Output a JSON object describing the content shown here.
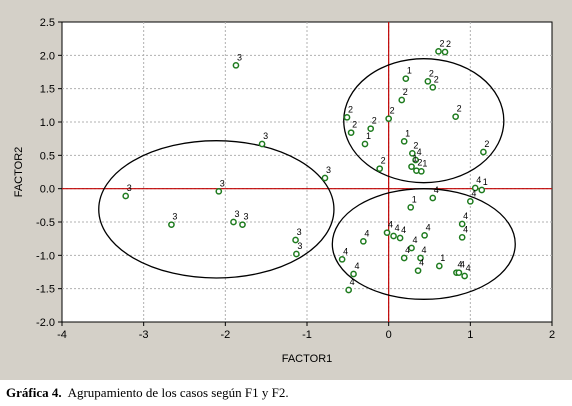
{
  "caption": {
    "label": "Gráfica 4.",
    "text": "Agrupamiento de los casos según F1 y F2."
  },
  "colors": {
    "background": "#d4d0c8",
    "plot_area": "#ffffff",
    "grid": "#b0b0b0",
    "axis_lines": "#c00000",
    "points": "#1e7b1e",
    "ellipses": "#000000"
  },
  "chart_data": {
    "type": "scatter",
    "xlabel": "FACTOR1",
    "ylabel": "FACTOR2",
    "xlim": [
      -4,
      2
    ],
    "ylim": [
      -2,
      2.5
    ],
    "xticks": [
      "-4",
      "-3",
      "-2",
      "-1",
      "0",
      "1",
      "2"
    ],
    "yticks": [
      "-2.0",
      "-1.5",
      "-1.0",
      "-0.5",
      "0.0",
      "0.5",
      "1.0",
      "1.5",
      "2.0",
      "2.5"
    ],
    "grid": true,
    "reference_lines": {
      "x": 0,
      "y": 0
    },
    "points": [
      {
        "x": -1.87,
        "y": 1.85,
        "label": "3"
      },
      {
        "x": -1.55,
        "y": 0.67,
        "label": "3"
      },
      {
        "x": -0.78,
        "y": 0.16,
        "label": "3"
      },
      {
        "x": -3.22,
        "y": -0.11,
        "label": "3"
      },
      {
        "x": -2.08,
        "y": -0.04,
        "label": "3"
      },
      {
        "x": -2.66,
        "y": -0.54,
        "label": "3"
      },
      {
        "x": -1.9,
        "y": -0.5,
        "label": "3"
      },
      {
        "x": -1.79,
        "y": -0.54,
        "label": "3"
      },
      {
        "x": -1.14,
        "y": -0.77,
        "label": "3"
      },
      {
        "x": -1.13,
        "y": -0.98,
        "label": "3"
      },
      {
        "x": 0.61,
        "y": 2.06,
        "label": "2"
      },
      {
        "x": 0.69,
        "y": 2.05,
        "label": "2"
      },
      {
        "x": 0.21,
        "y": 1.65,
        "label": "1"
      },
      {
        "x": 0.48,
        "y": 1.61,
        "label": "2"
      },
      {
        "x": 0.54,
        "y": 1.52,
        "label": "2"
      },
      {
        "x": 0.16,
        "y": 1.33,
        "label": "2"
      },
      {
        "x": 0.82,
        "y": 1.08,
        "label": "2"
      },
      {
        "x": -0.51,
        "y": 1.07,
        "label": "2"
      },
      {
        "x": -0.46,
        "y": 0.84,
        "label": "2"
      },
      {
        "x": -0.22,
        "y": 0.9,
        "label": "2"
      },
      {
        "x": 0.0,
        "y": 1.05,
        "label": "2"
      },
      {
        "x": -0.29,
        "y": 0.67,
        "label": "1"
      },
      {
        "x": 0.19,
        "y": 0.71,
        "label": "1"
      },
      {
        "x": 0.29,
        "y": 0.53,
        "label": "2"
      },
      {
        "x": 0.33,
        "y": 0.43,
        "label": "4"
      },
      {
        "x": -0.11,
        "y": 0.3,
        "label": "2"
      },
      {
        "x": 0.28,
        "y": 0.33,
        "label": "1"
      },
      {
        "x": 0.34,
        "y": 0.27,
        "label": "2"
      },
      {
        "x": 0.4,
        "y": 0.26,
        "label": "1"
      },
      {
        "x": 1.16,
        "y": 0.55,
        "label": "2"
      },
      {
        "x": 0.54,
        "y": -0.14,
        "label": "4"
      },
      {
        "x": 1.06,
        "y": 0.01,
        "label": "4"
      },
      {
        "x": 1.14,
        "y": -0.02,
        "label": "1"
      },
      {
        "x": 1.0,
        "y": -0.19,
        "label": "4"
      },
      {
        "x": 0.27,
        "y": -0.28,
        "label": "1"
      },
      {
        "x": -0.02,
        "y": -0.66,
        "label": "4"
      },
      {
        "x": 0.06,
        "y": -0.71,
        "label": "4"
      },
      {
        "x": 0.14,
        "y": -0.74,
        "label": "4"
      },
      {
        "x": 0.44,
        "y": -0.7,
        "label": "4"
      },
      {
        "x": 0.9,
        "y": -0.53,
        "label": "4"
      },
      {
        "x": 0.9,
        "y": -0.73,
        "label": "4"
      },
      {
        "x": -0.31,
        "y": -0.79,
        "label": "4"
      },
      {
        "x": 0.28,
        "y": -0.89,
        "label": "4"
      },
      {
        "x": -0.57,
        "y": -1.06,
        "label": "4"
      },
      {
        "x": 0.19,
        "y": -1.04,
        "label": "4"
      },
      {
        "x": 0.39,
        "y": -1.04,
        "label": "4"
      },
      {
        "x": 0.62,
        "y": -1.16,
        "label": "1"
      },
      {
        "x": -0.43,
        "y": -1.28,
        "label": "4"
      },
      {
        "x": 0.36,
        "y": -1.23,
        "label": "4"
      },
      {
        "x": 0.83,
        "y": -1.26,
        "label": "4"
      },
      {
        "x": 0.86,
        "y": -1.26,
        "label": "4"
      },
      {
        "x": 0.93,
        "y": -1.31,
        "label": "4"
      },
      {
        "x": -0.49,
        "y": -1.52,
        "label": "4"
      }
    ],
    "ellipses": [
      {
        "cx": 0.43,
        "cy": 1.02,
        "rx": 0.98,
        "ry": 0.93
      },
      {
        "cx": -2.11,
        "cy": -0.31,
        "rx": 1.44,
        "ry": 1.03
      },
      {
        "cx": 0.43,
        "cy": -0.83,
        "rx": 1.12,
        "ry": 0.83
      }
    ]
  }
}
